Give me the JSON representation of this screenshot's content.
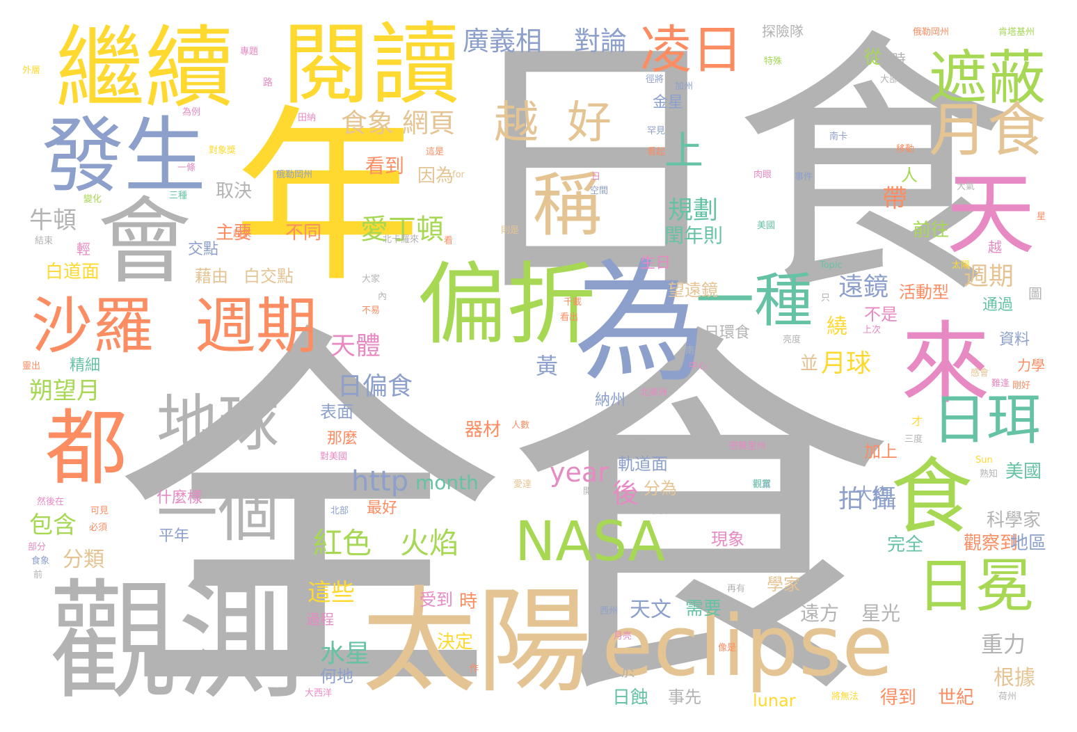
{
  "palette": {
    "gray": "#b3b3b3",
    "orange": "#fc8d62",
    "blue": "#8da0cb",
    "pink": "#e78ac3",
    "green": "#a6d854",
    "yellow": "#ffd92f",
    "tan": "#e5c494",
    "teal": "#66c2a5"
  },
  "words": [
    {
      "text": "日食",
      "color": "gray"
    },
    {
      "text": "全食",
      "color": "gray"
    },
    {
      "text": "年",
      "color": "yellow"
    },
    {
      "text": "觀測",
      "color": "gray"
    },
    {
      "text": "太陽",
      "color": "tan"
    },
    {
      "text": "eclipse",
      "color": "tan"
    },
    {
      "text": "為",
      "color": "blue"
    },
    {
      "text": "繼續",
      "color": "yellow"
    },
    {
      "text": "閱讀",
      "color": "yellow"
    },
    {
      "text": "發生",
      "color": "blue"
    },
    {
      "text": "會",
      "color": "gray"
    },
    {
      "text": "偏折",
      "color": "green"
    },
    {
      "text": "來",
      "color": "pink"
    },
    {
      "text": "天",
      "color": "pink"
    },
    {
      "text": "食",
      "color": "green"
    },
    {
      "text": "沙羅",
      "color": "orange"
    },
    {
      "text": "週期",
      "color": "orange"
    },
    {
      "text": "都",
      "color": "orange"
    },
    {
      "text": "地球",
      "color": "gray"
    },
    {
      "text": "一個",
      "color": "gray"
    },
    {
      "text": "遮蔽",
      "color": "green"
    },
    {
      "text": "月食",
      "color": "tan"
    },
    {
      "text": "凌日",
      "color": "orange"
    },
    {
      "text": "NASA",
      "color": "green"
    },
    {
      "text": "日珥",
      "color": "teal"
    },
    {
      "text": "日冕",
      "color": "green"
    },
    {
      "text": "一種",
      "color": "teal"
    },
    {
      "text": "稱",
      "color": "tan"
    },
    {
      "text": "越",
      "color": "tan"
    },
    {
      "text": "好",
      "color": "tan"
    },
    {
      "text": "上",
      "color": "teal"
    },
    {
      "text": "廣義相",
      "color": "blue"
    },
    {
      "text": "對論",
      "color": "blue"
    },
    {
      "text": "食象",
      "color": "tan"
    },
    {
      "text": "網頁",
      "color": "tan"
    },
    {
      "text": "愛丁頓",
      "color": "green"
    },
    {
      "text": "規劃",
      "color": "teal"
    },
    {
      "text": "閏年則",
      "color": "teal"
    },
    {
      "text": "牛頓",
      "color": "gray"
    },
    {
      "text": "取決",
      "color": "gray"
    },
    {
      "text": "主要",
      "color": "orange"
    },
    {
      "text": "不同",
      "color": "orange"
    },
    {
      "text": "交點",
      "color": "blue"
    },
    {
      "text": "白道面",
      "color": "yellow"
    },
    {
      "text": "藉由",
      "color": "tan"
    },
    {
      "text": "白交點",
      "color": "tan"
    },
    {
      "text": "帶",
      "color": "orange"
    },
    {
      "text": "前往",
      "color": "green"
    },
    {
      "text": "週期",
      "color": "tan"
    },
    {
      "text": "遠鏡",
      "color": "blue"
    },
    {
      "text": "活動型",
      "color": "orange"
    },
    {
      "text": "看到",
      "color": "orange"
    },
    {
      "text": "因為",
      "color": "tan"
    },
    {
      "text": "金星",
      "color": "blue"
    },
    {
      "text": "生日",
      "color": "pink"
    },
    {
      "text": "望遠鏡",
      "color": "tan"
    },
    {
      "text": "日環食",
      "color": "gray"
    },
    {
      "text": "天體",
      "color": "pink"
    },
    {
      "text": "黃",
      "color": "blue"
    },
    {
      "text": "繞",
      "color": "yellow"
    },
    {
      "text": "並",
      "color": "tan"
    },
    {
      "text": "月球",
      "color": "yellow"
    },
    {
      "text": "不是",
      "color": "pink"
    },
    {
      "text": "精細",
      "color": "teal"
    },
    {
      "text": "朔望月",
      "color": "green"
    },
    {
      "text": "日偏食",
      "color": "blue"
    },
    {
      "text": "納州",
      "color": "blue"
    },
    {
      "text": "表面",
      "color": "blue"
    },
    {
      "text": "那麼",
      "color": "orange"
    },
    {
      "text": "器材",
      "color": "orange"
    },
    {
      "text": "http",
      "color": "blue"
    },
    {
      "text": "month",
      "color": "teal"
    },
    {
      "text": "year",
      "color": "pink"
    },
    {
      "text": "軌道面",
      "color": "blue"
    },
    {
      "text": "後",
      "color": "pink"
    },
    {
      "text": "分為",
      "color": "tan"
    },
    {
      "text": "拍 攝",
      "color": "blue"
    },
    {
      "text": "大約",
      "color": "blue"
    },
    {
      "text": "美國",
      "color": "teal"
    },
    {
      "text": "包含",
      "color": "green"
    },
    {
      "text": "什麼樣",
      "color": "pink"
    },
    {
      "text": "平年",
      "color": "blue"
    },
    {
      "text": "最好",
      "color": "orange"
    },
    {
      "text": "紅色",
      "color": "green"
    },
    {
      "text": "火焰",
      "color": "green"
    },
    {
      "text": "分類",
      "color": "tan"
    },
    {
      "text": "這些",
      "color": "yellow"
    },
    {
      "text": "受到",
      "color": "pink"
    },
    {
      "text": "時",
      "color": "orange"
    },
    {
      "text": "天文",
      "color": "blue"
    },
    {
      "text": "需要",
      "color": "teal"
    },
    {
      "text": "遠方",
      "color": "gray"
    },
    {
      "text": "星光",
      "color": "gray"
    },
    {
      "text": "學家",
      "color": "tan"
    },
    {
      "text": "觀察到",
      "color": "orange"
    },
    {
      "text": "地區",
      "color": "blue"
    },
    {
      "text": "科學家",
      "color": "gray"
    },
    {
      "text": "現象",
      "color": "pink"
    },
    {
      "text": "完全",
      "color": "teal"
    },
    {
      "text": "水星",
      "color": "teal"
    },
    {
      "text": "何地",
      "color": "blue"
    },
    {
      "text": "決定",
      "color": "yellow"
    },
    {
      "text": "重力",
      "color": "gray"
    },
    {
      "text": "根據",
      "color": "tan"
    },
    {
      "text": "日蝕",
      "color": "teal"
    },
    {
      "text": "事先",
      "color": "gray"
    },
    {
      "text": "lunar",
      "color": "yellow"
    },
    {
      "text": "得到",
      "color": "orange"
    },
    {
      "text": "世紀",
      "color": "orange"
    },
    {
      "text": "於",
      "color": "gray"
    },
    {
      "text": "過程",
      "color": "pink"
    },
    {
      "text": "探險隊",
      "color": "gray"
    },
    {
      "text": "從",
      "color": "green"
    },
    {
      "text": "何時",
      "color": "gray"
    },
    {
      "text": "人",
      "color": "green"
    },
    {
      "text": "通過",
      "color": "teal"
    },
    {
      "text": "資料",
      "color": "blue"
    },
    {
      "text": "力學",
      "color": "orange"
    },
    {
      "text": "加上",
      "color": "orange"
    },
    {
      "text": "輕",
      "color": "pink"
    },
    {
      "text": "月",
      "color": "gray"
    },
    {
      "text": "專題",
      "color": "pink"
    },
    {
      "text": "特殊",
      "color": "green"
    },
    {
      "text": "俄勒岡州",
      "color": "orange"
    },
    {
      "text": "肯塔基州",
      "color": "green"
    },
    {
      "text": "外層",
      "color": "yellow"
    },
    {
      "text": "路",
      "color": "pink"
    },
    {
      "text": "徑將",
      "color": "blue"
    },
    {
      "text": "加州",
      "color": "blue"
    },
    {
      "text": "大部分",
      "color": "gray"
    },
    {
      "text": "為例",
      "color": "pink"
    },
    {
      "text": "田納",
      "color": "pink"
    },
    {
      "text": "罕見",
      "color": "blue"
    },
    {
      "text": "南卡",
      "color": "blue"
    },
    {
      "text": "這是",
      "color": "orange"
    },
    {
      "text": "看起",
      "color": "orange"
    },
    {
      "text": "移動",
      "color": "orange"
    },
    {
      "text": "一條",
      "color": "pink"
    },
    {
      "text": "俄勒岡州",
      "color": "blue"
    },
    {
      "text": "for",
      "color": "tan"
    },
    {
      "text": "肉眼",
      "color": "pink"
    },
    {
      "text": "事件",
      "color": "blue"
    },
    {
      "text": "三種",
      "color": "teal"
    },
    {
      "text": "變化",
      "color": "green"
    },
    {
      "text": "起來",
      "color": "orange"
    },
    {
      "text": "結束",
      "color": "gray"
    },
    {
      "text": "北卡羅來",
      "color": "gray"
    },
    {
      "text": "日",
      "color": "pink"
    },
    {
      "text": "空間",
      "color": "blue"
    },
    {
      "text": "則是",
      "color": "tan"
    },
    {
      "text": "美國",
      "color": "teal"
    },
    {
      "text": "大氣",
      "color": "gray"
    },
    {
      "text": "Topic",
      "color": "teal"
    },
    {
      "text": "太陽",
      "color": "yellow"
    },
    {
      "text": "越",
      "color": "pink"
    },
    {
      "text": "大家",
      "color": "gray"
    },
    {
      "text": "內",
      "color": "gray"
    },
    {
      "text": "不易",
      "color": "orange"
    },
    {
      "text": "千載",
      "color": "orange"
    },
    {
      "text": "看出",
      "color": "orange"
    },
    {
      "text": "只",
      "color": "gray"
    },
    {
      "text": "亮度",
      "color": "gray"
    },
    {
      "text": "上次",
      "color": "pink"
    },
    {
      "text": "南美洲",
      "color": "gray"
    },
    {
      "text": "中心",
      "color": "pink"
    },
    {
      "text": "北美洲",
      "color": "pink"
    },
    {
      "text": "觀賞",
      "color": "blue"
    },
    {
      "text": "難逢",
      "color": "pink"
    },
    {
      "text": "剛好",
      "color": "orange"
    },
    {
      "text": "才",
      "color": "yellow"
    },
    {
      "text": "三度",
      "color": "gray"
    },
    {
      "text": "密蘇里州",
      "color": "pink"
    },
    {
      "text": "天象",
      "color": "gray"
    },
    {
      "text": "人數",
      "color": "orange"
    },
    {
      "text": "布拉斯",
      "color": "gray"
    },
    {
      "text": "對美國",
      "color": "pink"
    },
    {
      "text": "Sun",
      "color": "yellow"
    },
    {
      "text": "熟知",
      "color": "gray"
    },
    {
      "text": "愛達",
      "color": "tan"
    },
    {
      "text": "開始",
      "color": "gray"
    },
    {
      "text": "觀眾",
      "color": "teal"
    },
    {
      "text": "北部",
      "color": "blue"
    },
    {
      "text": "下次",
      "color": "gray"
    },
    {
      "text": "然後在",
      "color": "pink"
    },
    {
      "text": "可見",
      "color": "orange"
    },
    {
      "text": "必須",
      "color": "orange"
    },
    {
      "text": "部分",
      "color": "pink"
    },
    {
      "text": "食象",
      "color": "blue"
    },
    {
      "text": "前",
      "color": "gray"
    },
    {
      "text": "太平洋",
      "color": "gray"
    },
    {
      "text": "再有",
      "color": "gray"
    },
    {
      "text": "西州",
      "color": "blue"
    },
    {
      "text": "月亮",
      "color": "pink"
    },
    {
      "text": "像是",
      "color": "orange"
    },
    {
      "text": "大西洋",
      "color": "pink"
    },
    {
      "text": "作",
      "color": "orange"
    },
    {
      "text": "將無法",
      "color": "yellow"
    },
    {
      "text": "荷州",
      "color": "gray"
    },
    {
      "text": "靈出",
      "color": "orange"
    },
    {
      "text": "感會",
      "color": "tan"
    },
    {
      "text": "對象獎",
      "color": "yellow"
    },
    {
      "text": "看",
      "color": "orange"
    },
    {
      "text": "圖",
      "color": "gray"
    },
    {
      "text": "星",
      "color": "orange"
    }
  ]
}
